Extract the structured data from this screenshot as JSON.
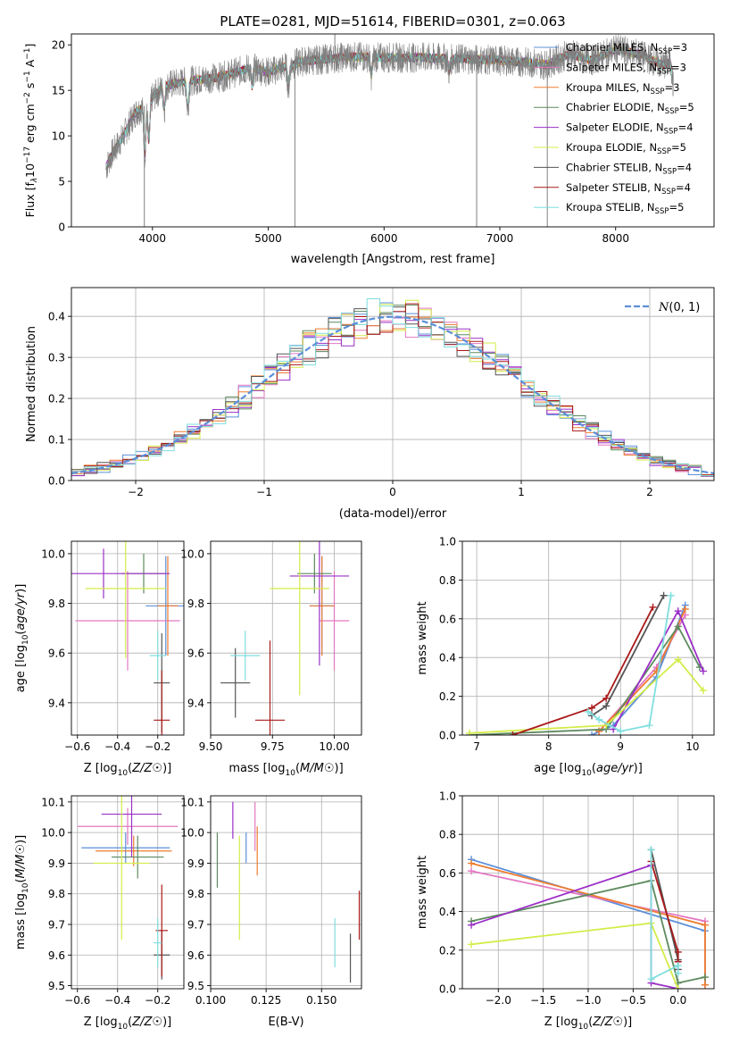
{
  "figure": {
    "title": "PLATE=0281, MJD=51614, FIBERID=0301, z=0.063"
  },
  "models": [
    {
      "name": "Chabrier MILES",
      "nssp": "3",
      "color": "#5b8fd9"
    },
    {
      "name": "Salpeter MILES",
      "nssp": "3",
      "color": "#e377c2"
    },
    {
      "name": "Kroupa MILES",
      "nssp": "3",
      "color": "#ed7d31"
    },
    {
      "name": "Chabrier ELODIE",
      "nssp": "5",
      "color": "#5d8a5e"
    },
    {
      "name": "Salpeter ELODIE",
      "nssp": "4",
      "color": "#9b30c8"
    },
    {
      "name": "Kroupa ELODIE",
      "nssp": "5",
      "color": "#d4ec4a"
    },
    {
      "name": "Chabrier STELIB",
      "nssp": "4",
      "color": "#555555"
    },
    {
      "name": "Salpeter STELIB",
      "nssp": "4",
      "color": "#aa1a1a"
    },
    {
      "name": "Kroupa STELIB",
      "nssp": "5",
      "color": "#80dede"
    }
  ],
  "chart_data": [
    {
      "id": "spectrum",
      "type": "line",
      "xlabel": "wavelength [Angstrom, rest frame]",
      "ylabel_parts": [
        "Flux [f",
        "λ",
        "10",
        "−17",
        " erg cm",
        "−2",
        " s",
        "−1",
        " A",
        "−1",
        "]"
      ],
      "xlim": [
        3300,
        8850
      ],
      "ylim": [
        0,
        21.2
      ],
      "xticks": [
        4000,
        5000,
        6000,
        7000,
        8000
      ],
      "yticks": [
        0,
        5,
        10,
        15,
        20
      ],
      "data_color": "#808080",
      "data_x_range": [
        3600,
        8500
      ],
      "continuum": [
        [
          3600,
          6.5
        ],
        [
          3650,
          8.0
        ],
        [
          3750,
          10.0
        ],
        [
          3850,
          12.5
        ],
        [
          3950,
          13.5
        ],
        [
          4100,
          15.5
        ],
        [
          4300,
          16.0
        ],
        [
          4600,
          16.5
        ],
        [
          4850,
          17.5
        ],
        [
          5000,
          17.0
        ],
        [
          5300,
          18.2
        ],
        [
          5700,
          18.7
        ],
        [
          6000,
          18.6
        ],
        [
          6300,
          18.6
        ],
        [
          6600,
          18.5
        ],
        [
          7000,
          18.3
        ],
        [
          7300,
          18.0
        ],
        [
          7400,
          17.8
        ],
        [
          7600,
          19.0
        ],
        [
          7800,
          18.3
        ],
        [
          8000,
          19.5
        ],
        [
          8200,
          19.0
        ],
        [
          8400,
          17.8
        ],
        [
          8500,
          18.0
        ]
      ],
      "absorption": [
        [
          3934,
          5.5
        ],
        [
          3969,
          4.5
        ],
        [
          4102,
          2.5
        ],
        [
          4305,
          3.0
        ],
        [
          4861,
          2.0
        ],
        [
          5175,
          2.5
        ],
        [
          5890,
          2.0
        ],
        [
          6563,
          1.5
        ],
        [
          8498,
          2.5
        ],
        [
          8542,
          3.0
        ]
      ],
      "spikes": [
        [
          3930,
          0
        ],
        [
          5230,
          0
        ],
        [
          6800,
          0
        ],
        [
          7410,
          0
        ],
        [
          5575,
          21.2
        ],
        [
          8430,
          20.0
        ]
      ]
    },
    {
      "id": "residuals",
      "type": "histogram",
      "xlabel": "(data-model)/error",
      "ylabel": "Normed distribution",
      "xlim": [
        -2.5,
        2.5
      ],
      "ylim": [
        0,
        0.47
      ],
      "xticks": [
        -2,
        -1,
        0,
        1,
        2
      ],
      "yticks": [
        0.0,
        0.1,
        0.2,
        0.3,
        0.4
      ],
      "bin_width": 0.1,
      "gaussian_label": "N(0,1)",
      "gaussian_color": "#5b8fd9"
    },
    {
      "id": "age-vs-Z",
      "type": "errorbar",
      "xlabel": "Z [log10(Z/Z☉)]",
      "ylabel": "age  [log10(age/yr)]",
      "xlim": [
        -0.63,
        -0.07
      ],
      "ylim": [
        9.27,
        10.05
      ],
      "xticks": [
        -0.6,
        -0.4,
        -0.2
      ],
      "yticks": [
        9.4,
        9.6,
        9.8,
        10.0
      ],
      "points": [
        {
          "x": -0.16,
          "xerr": 0.1,
          "y": 9.79,
          "yerr": 0.2,
          "model": 0
        },
        {
          "x": -0.35,
          "xerr": 0.26,
          "y": 9.73,
          "yerr": 0.2,
          "model": 1
        },
        {
          "x": -0.15,
          "xerr": 0.05,
          "y": 9.79,
          "yerr": 0.2,
          "model": 2
        },
        {
          "x": -0.27,
          "xerr": 0.11,
          "y": 9.92,
          "yerr": 0.08,
          "model": 3
        },
        {
          "x": -0.47,
          "xerr": 0.33,
          "y": 9.92,
          "yerr": 0.1,
          "model": 4
        },
        {
          "x": -0.36,
          "xerr": 0.2,
          "y": 9.86,
          "yerr": 0.28,
          "model": 5
        },
        {
          "x": -0.18,
          "xerr": 0.04,
          "y": 9.48,
          "yerr": 0.2,
          "model": 6
        },
        {
          "x": -0.18,
          "xerr": 0.04,
          "y": 9.33,
          "yerr": 0.2,
          "model": 7
        },
        {
          "x": -0.2,
          "xerr": 0.04,
          "y": 9.59,
          "yerr": 0.1,
          "model": 8
        }
      ]
    },
    {
      "id": "age-vs-mass",
      "type": "errorbar",
      "xlabel": "mass [log10(M/M☉)]",
      "ylabel": "",
      "xlim": [
        9.5,
        10.11
      ],
      "ylim": [
        9.27,
        10.05
      ],
      "xticks": [
        9.5,
        9.75,
        10.0
      ],
      "xticklabels": [
        "9.50",
        "9.75",
        "10.00"
      ],
      "yticks": [
        9.4,
        9.6,
        9.8,
        10.0
      ],
      "points": [
        {
          "x": 9.95,
          "xerr": 0.05,
          "y": 9.79,
          "yerr": 0.2,
          "model": 0
        },
        {
          "x": 10.0,
          "xerr": 0.06,
          "y": 9.73,
          "yerr": 0.2,
          "model": 1
        },
        {
          "x": 9.95,
          "xerr": 0.05,
          "y": 9.79,
          "yerr": 0.2,
          "model": 2
        },
        {
          "x": 9.92,
          "xerr": 0.07,
          "y": 9.92,
          "yerr": 0.08,
          "model": 3
        },
        {
          "x": 9.94,
          "xerr": 0.12,
          "y": 9.91,
          "yerr": 0.36,
          "model": 4
        },
        {
          "x": 9.86,
          "xerr": 0.12,
          "y": 9.86,
          "yerr": 0.43,
          "model": 5
        },
        {
          "x": 9.6,
          "xerr": 0.06,
          "y": 9.48,
          "yerr": 0.14,
          "model": 6
        },
        {
          "x": 9.74,
          "xerr": 0.06,
          "y": 9.33,
          "yerr": 0.32,
          "model": 7
        },
        {
          "x": 9.64,
          "xerr": 0.06,
          "y": 9.59,
          "yerr": 0.1,
          "model": 8
        }
      ]
    },
    {
      "id": "weight-vs-age",
      "type": "line",
      "xlabel": "age  [log10(age/yr)]",
      "ylabel": "mass weight",
      "xlim": [
        6.8,
        10.3
      ],
      "ylim": [
        0.0,
        1.0
      ],
      "xticks": [
        7,
        8,
        9,
        10
      ],
      "yticks": [
        0.0,
        0.2,
        0.4,
        0.6,
        0.8,
        1.0
      ],
      "series": [
        {
          "model": 0,
          "x": [
            8.6,
            8.9,
            9.5,
            9.9
          ],
          "y": [
            0.0,
            0.05,
            0.3,
            0.67
          ]
        },
        {
          "model": 1,
          "x": [
            8.7,
            9.5,
            9.9
          ],
          "y": [
            0.02,
            0.35,
            0.62
          ]
        },
        {
          "model": 2,
          "x": [
            8.7,
            9.5,
            9.9
          ],
          "y": [
            0.02,
            0.33,
            0.65
          ]
        },
        {
          "model": 3,
          "x": [
            6.9,
            8.8,
            9.8,
            10.1
          ],
          "y": [
            0.0,
            0.03,
            0.56,
            0.35
          ]
        },
        {
          "model": 4,
          "x": [
            8.9,
            9.8,
            10.15
          ],
          "y": [
            0.03,
            0.64,
            0.33
          ]
        },
        {
          "model": 5,
          "x": [
            6.9,
            8.8,
            9.8,
            10.15
          ],
          "y": [
            0.01,
            0.05,
            0.39,
            0.23
          ]
        },
        {
          "model": 6,
          "x": [
            8.6,
            8.8,
            9.6
          ],
          "y": [
            0.1,
            0.15,
            0.72
          ]
        },
        {
          "model": 7,
          "x": [
            7.5,
            8.6,
            8.8,
            9.45
          ],
          "y": [
            0.0,
            0.14,
            0.19,
            0.66
          ]
        },
        {
          "model": 8,
          "x": [
            8.55,
            8.7,
            9.0,
            9.4,
            9.7
          ],
          "y": [
            0.12,
            0.08,
            0.02,
            0.05,
            0.72
          ]
        }
      ]
    },
    {
      "id": "mass-vs-Z",
      "type": "errorbar",
      "xlabel": "Z [log10(Z/Z☉)]",
      "ylabel": "mass [log10(M/M☉)]",
      "xlim": [
        -0.63,
        -0.07
      ],
      "ylim": [
        9.49,
        10.12
      ],
      "xticks": [
        -0.6,
        -0.4,
        -0.2
      ],
      "yticks": [
        9.5,
        9.6,
        9.7,
        9.8,
        9.9,
        10.0,
        10.1
      ],
      "points": [
        {
          "x": -0.36,
          "xerr": 0.22,
          "y": 9.95,
          "yerr": 0.05,
          "model": 0
        },
        {
          "x": -0.35,
          "xerr": 0.25,
          "y": 10.02,
          "yerr": 0.06,
          "model": 1
        },
        {
          "x": -0.32,
          "xerr": 0.19,
          "y": 9.94,
          "yerr": 0.05,
          "model": 2
        },
        {
          "x": -0.3,
          "xerr": 0.13,
          "y": 9.92,
          "yerr": 0.07,
          "model": 3
        },
        {
          "x": -0.33,
          "xerr": 0.15,
          "y": 10.06,
          "yerr": 0.14,
          "model": 4
        },
        {
          "x": -0.38,
          "xerr": 0.14,
          "y": 9.9,
          "yerr": 0.25,
          "model": 5
        },
        {
          "x": -0.18,
          "xerr": 0.04,
          "y": 9.6,
          "yerr": 0.08,
          "model": 6
        },
        {
          "x": -0.18,
          "xerr": 0.03,
          "y": 9.68,
          "yerr": 0.15,
          "model": 7
        },
        {
          "x": -0.2,
          "xerr": 0.02,
          "y": 9.64,
          "yerr": 0.08,
          "model": 8
        }
      ]
    },
    {
      "id": "mass-vs-ebv",
      "type": "errorbar",
      "xlabel": "E(B-V)",
      "ylabel": "",
      "xlim": [
        0.1,
        0.168
      ],
      "ylim": [
        9.49,
        10.12
      ],
      "xticks": [
        0.1,
        0.125,
        0.15
      ],
      "xticklabels": [
        "0.100",
        "0.125",
        "0.150"
      ],
      "yticks": [
        9.5,
        9.6,
        9.7,
        9.8,
        9.9,
        10.0,
        10.1
      ],
      "points": [
        {
          "x": 0.116,
          "xerr": 0,
          "y": 9.95,
          "yerr": 0.05,
          "model": 0
        },
        {
          "x": 0.12,
          "xerr": 0,
          "y": 10.02,
          "yerr": 0.08,
          "model": 1
        },
        {
          "x": 0.121,
          "xerr": 0,
          "y": 9.94,
          "yerr": 0.08,
          "model": 2
        },
        {
          "x": 0.103,
          "xerr": 0,
          "y": 9.91,
          "yerr": 0.09,
          "model": 3
        },
        {
          "x": 0.11,
          "xerr": 0,
          "y": 10.04,
          "yerr": 0.06,
          "model": 4
        },
        {
          "x": 0.113,
          "xerr": 0,
          "y": 9.82,
          "yerr": 0.17,
          "model": 5
        },
        {
          "x": 0.163,
          "xerr": 0,
          "y": 9.59,
          "yerr": 0.08,
          "model": 6
        },
        {
          "x": 0.167,
          "xerr": 0,
          "y": 9.73,
          "yerr": 0.08,
          "model": 7
        },
        {
          "x": 0.156,
          "xerr": 0,
          "y": 9.64,
          "yerr": 0.08,
          "model": 8
        }
      ]
    },
    {
      "id": "weight-vs-Z",
      "type": "line",
      "xlabel": "Z [log10(Z/Z☉)]",
      "ylabel": "mass weight",
      "xlim": [
        -2.4,
        0.4
      ],
      "ylim": [
        0.0,
        1.0
      ],
      "xticks": [
        -2.0,
        -1.5,
        -1.0,
        -0.5,
        0.0
      ],
      "xticklabels": [
        "−2.0",
        "−1.5",
        "−1.0",
        "−0.5",
        "0.0"
      ],
      "yticks": [
        0.0,
        0.2,
        0.4,
        0.6,
        0.8,
        1.0
      ],
      "series": [
        {
          "model": 0,
          "x": [
            -2.3,
            0.3,
            0.3
          ],
          "y": [
            0.67,
            0.3,
            0.02
          ]
        },
        {
          "model": 1,
          "x": [
            -2.3,
            0.3,
            0.3
          ],
          "y": [
            0.61,
            0.35,
            0.02
          ]
        },
        {
          "model": 2,
          "x": [
            -2.3,
            0.3,
            0.3
          ],
          "y": [
            0.65,
            0.33,
            0.02
          ]
        },
        {
          "model": 3,
          "x": [
            -2.3,
            -0.3,
            0.0,
            0.3
          ],
          "y": [
            0.35,
            0.56,
            0.03,
            0.06
          ]
        },
        {
          "model": 4,
          "x": [
            -2.3,
            -0.3,
            -0.3,
            0.0
          ],
          "y": [
            0.33,
            0.64,
            0.03,
            0.0
          ]
        },
        {
          "model": 5,
          "x": [
            -2.3,
            -0.3,
            0.0
          ],
          "y": [
            0.23,
            0.34,
            0.0
          ]
        },
        {
          "model": 6,
          "x": [
            -0.3,
            0.0,
            0.0
          ],
          "y": [
            0.72,
            0.15,
            0.1
          ]
        },
        {
          "model": 7,
          "x": [
            -0.3,
            0.0,
            0.0
          ],
          "y": [
            0.66,
            0.19,
            0.14
          ]
        },
        {
          "model": 8,
          "x": [
            -0.3,
            -0.3,
            0.0,
            0.0
          ],
          "y": [
            0.72,
            0.05,
            0.12,
            0.08
          ]
        }
      ]
    }
  ]
}
